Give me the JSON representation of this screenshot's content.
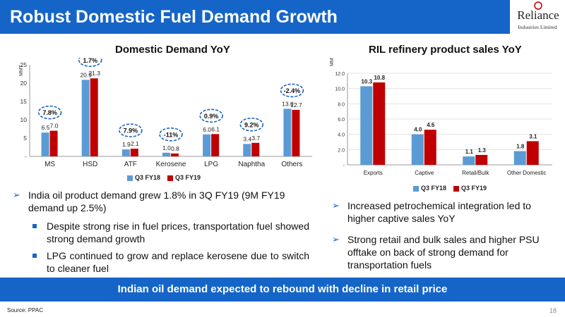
{
  "header": {
    "title": "Robust Domestic Fuel Demand Growth"
  },
  "logo": {
    "word": "Reliance",
    "sub": "Industries Limited"
  },
  "colors": {
    "q3fy18": "#5b9bd5",
    "q3fy19": "#c00000",
    "accent": "#1565c8"
  },
  "chart_data": [
    {
      "type": "bar",
      "title": "Domestic Demand YoY",
      "ylabel": "MMT",
      "ylim": [
        0,
        25
      ],
      "yticks": [
        "-",
        "5",
        "10",
        "15",
        "20",
        "25"
      ],
      "categories": [
        "MS",
        "HSD",
        "ATF",
        "Kerosene",
        "LPG",
        "Naphtha",
        "Others"
      ],
      "series": [
        {
          "name": "Q3 FY18",
          "values": [
            6.5,
            20.9,
            1.9,
            1.0,
            6.0,
            3.4,
            13.0
          ],
          "labels": [
            "6.5",
            "20.9",
            "1.9",
            "1.0",
            "6.0",
            "3.4",
            "13.0"
          ]
        },
        {
          "name": "Q3 FY19",
          "values": [
            7.0,
            21.3,
            2.1,
            0.8,
            6.1,
            3.7,
            12.7
          ],
          "labels": [
            "7.0",
            "21.3",
            "2.1",
            "0.8",
            "6.1",
            "3.7",
            "12.7"
          ]
        }
      ],
      "annotations": [
        "7.8%",
        "1.7%",
        "7.9%",
        "-11%",
        "0.9%",
        "9.2%",
        "-2.4%"
      ],
      "legend": "bottom"
    },
    {
      "type": "bar",
      "title": "RIL refinery product sales YoY",
      "ylabel": "MMT",
      "ylim": [
        0,
        12
      ],
      "yticks": [
        "-",
        "2.0",
        "4.0",
        "6.0",
        "8.0",
        "10.0",
        "12.0"
      ],
      "categories": [
        "Exports",
        "Captive",
        "Retail/Bulk",
        "Other Domestic"
      ],
      "series": [
        {
          "name": "Q3 FY18",
          "values": [
            10.3,
            4.0,
            1.1,
            1.8
          ],
          "labels": [
            "10.3",
            "4.0",
            "1.1",
            "1.8"
          ]
        },
        {
          "name": "Q3 FY19",
          "values": [
            10.8,
            4.6,
            1.3,
            3.1
          ],
          "labels": [
            "10.8",
            "4.6",
            "1.3",
            "3.1"
          ]
        }
      ],
      "legend": "bottom"
    }
  ],
  "left_text": {
    "bullet": "India oil product demand grew 1.8% in 3Q FY19 (9M FY19 demand up 2.5%)",
    "subs": [
      "Despite strong rise in fuel prices, transportation fuel showed strong demand growth",
      "LPG continued to grow and replace kerosene due to switch to cleaner fuel"
    ]
  },
  "right_text": {
    "bullets": [
      "Increased petrochemical integration led to higher captive sales YoY",
      "Strong retail and bulk sales and higher PSU offtake on back of strong demand for transportation fuels"
    ]
  },
  "banner": "Indian oil demand expected to rebound with decline in retail price",
  "source": "Source: PPAC",
  "page": "18"
}
